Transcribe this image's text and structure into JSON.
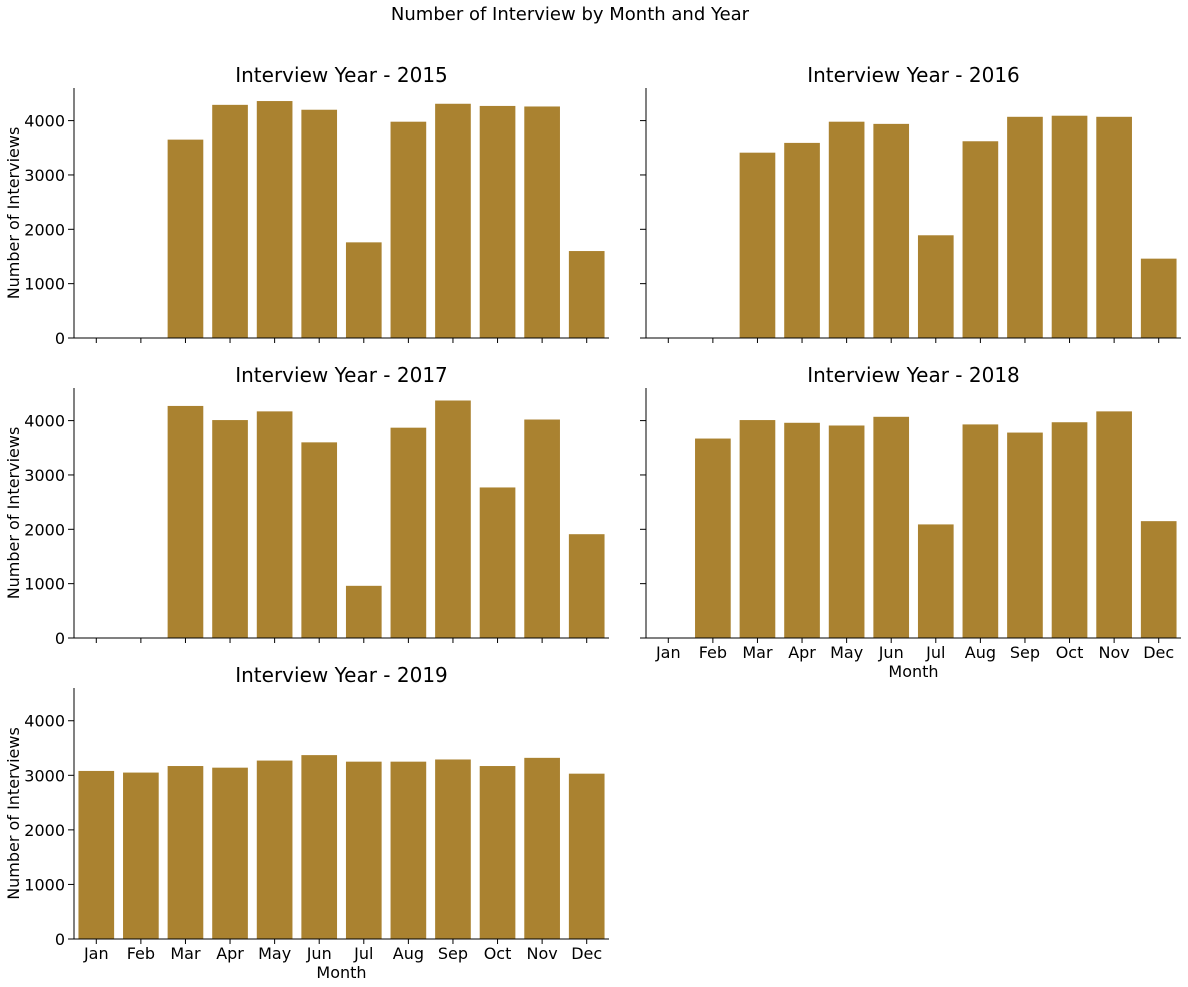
{
  "chart_data": {
    "type": "bar",
    "title": "Number of Interview by Month and Year",
    "categories": [
      "Jan",
      "Feb",
      "Mar",
      "Apr",
      "May",
      "Jun",
      "Jul",
      "Aug",
      "Sep",
      "Oct",
      "Nov",
      "Dec"
    ],
    "ylabel": "Number of Interviews",
    "xlabel": "Month",
    "ylim": [
      0,
      4600
    ],
    "yticks": [
      0,
      1000,
      2000,
      3000,
      4000
    ],
    "bar_color": "#AA8230",
    "legend": "none",
    "grid": false,
    "facets": [
      {
        "title": "Interview Year - 2015",
        "values": [
          0,
          0,
          3650,
          4290,
          4360,
          4200,
          1760,
          3980,
          4310,
          4270,
          4260,
          1600
        ],
        "show_ylabel": true,
        "show_xticklabels": false,
        "show_xlabel": false
      },
      {
        "title": "Interview Year - 2016",
        "values": [
          0,
          0,
          3410,
          3590,
          3980,
          3940,
          1890,
          3620,
          4070,
          4090,
          4070,
          1460
        ],
        "show_ylabel": false,
        "show_xticklabels": false,
        "show_xlabel": false
      },
      {
        "title": "Interview Year - 2017",
        "values": [
          0,
          0,
          4270,
          4010,
          4170,
          3600,
          960,
          3870,
          4370,
          2770,
          4020,
          1910
        ],
        "show_ylabel": true,
        "show_xticklabels": false,
        "show_xlabel": false
      },
      {
        "title": "Interview Year - 2018",
        "values": [
          0,
          3670,
          4010,
          3960,
          3910,
          4070,
          2090,
          3930,
          3780,
          3970,
          4170,
          2150
        ],
        "show_ylabel": false,
        "show_xticklabels": true,
        "show_xlabel": true
      },
      {
        "title": "Interview Year - 2019",
        "values": [
          3080,
          3050,
          3170,
          3140,
          3270,
          3370,
          3250,
          3250,
          3290,
          3170,
          3320,
          3030
        ],
        "show_ylabel": true,
        "show_xticklabels": true,
        "show_xlabel": true
      }
    ]
  }
}
